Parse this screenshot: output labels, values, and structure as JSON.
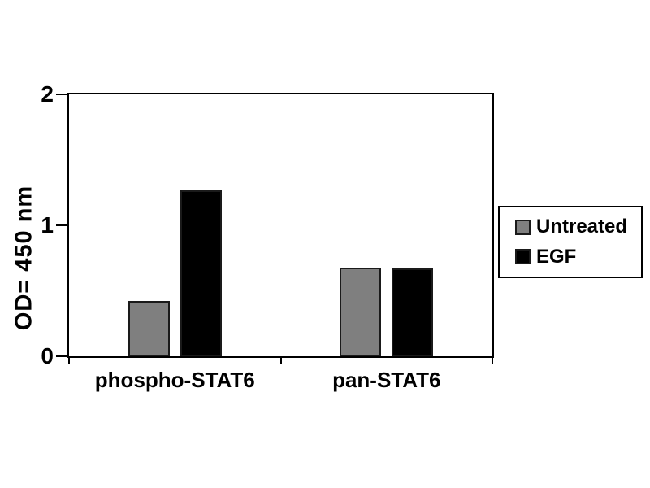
{
  "chart_data": {
    "type": "bar",
    "title": "",
    "categories": [
      "phospho-STAT6",
      "pan-STAT6"
    ],
    "series": [
      {
        "name": "Untreated",
        "color": "#7f7f7f",
        "values": [
          0.42,
          0.68
        ]
      },
      {
        "name": "EGF",
        "color": "#000000",
        "values": [
          1.27,
          0.67
        ]
      }
    ],
    "xlabel": "",
    "ylabel": "OD= 450 nm",
    "ylim": [
      0,
      2
    ],
    "yticks": [
      0,
      1,
      2
    ],
    "grid": "off",
    "legend_position": "right",
    "plot_border": "box"
  },
  "colors": {
    "background": "#ffffff",
    "axis": "#000000",
    "text": "#000000",
    "bar_border": "#1a1a1a",
    "legend_border": "#000000"
  }
}
